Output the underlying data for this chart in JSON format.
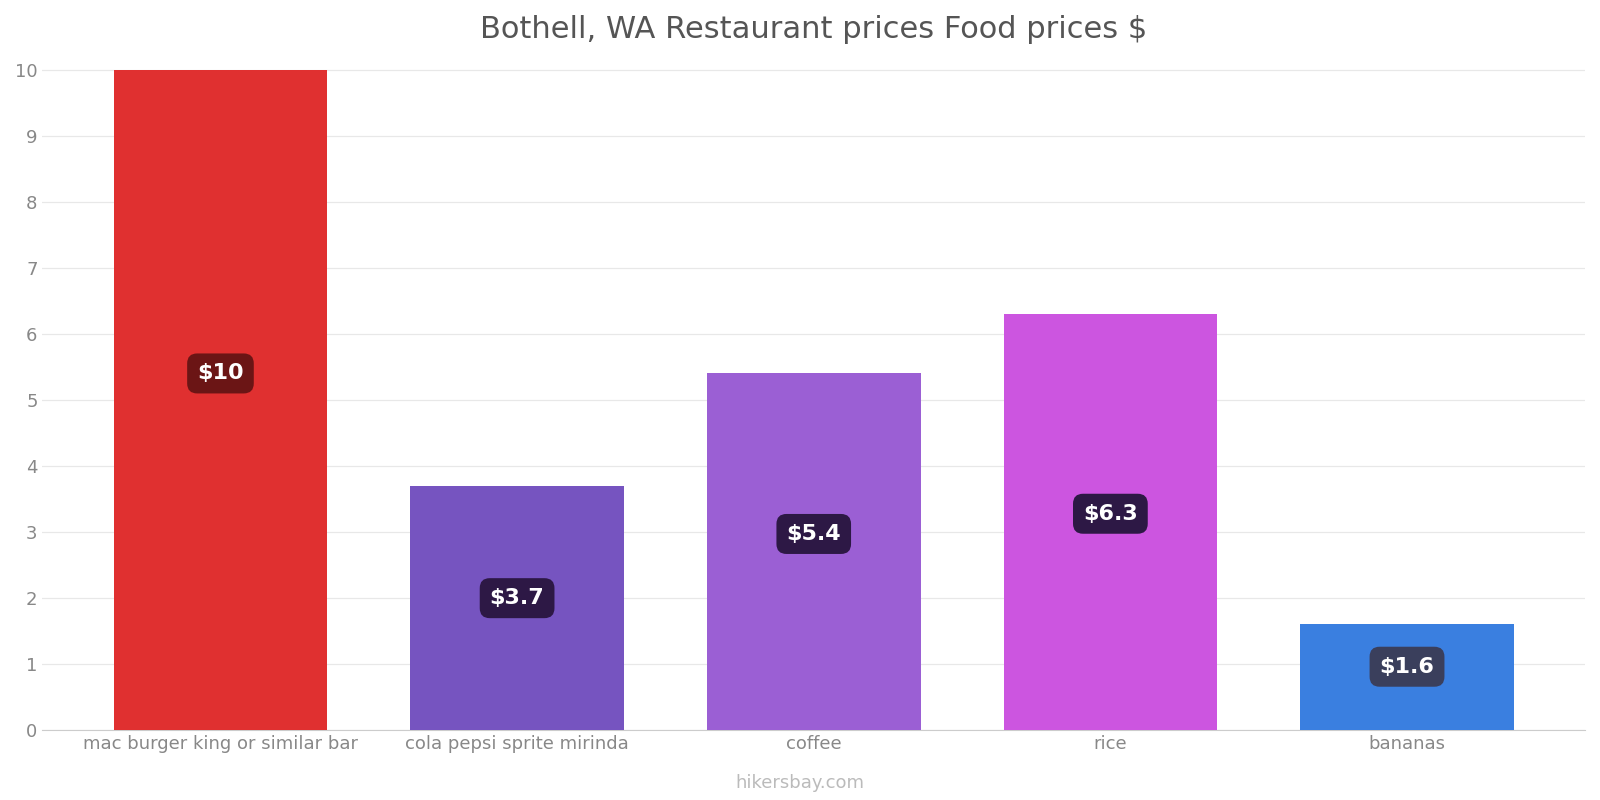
{
  "title": "Bothell, WA Restaurant prices Food prices $",
  "categories": [
    "mac burger king or similar bar",
    "cola pepsi sprite mirinda",
    "coffee",
    "rice",
    "bananas"
  ],
  "values": [
    10.0,
    3.7,
    5.4,
    6.3,
    1.6
  ],
  "bar_colors": [
    "#e03030",
    "#7654c0",
    "#9b5fd4",
    "#cc55e0",
    "#3a7fe0"
  ],
  "label_texts": [
    "$10",
    "$3.7",
    "$5.4",
    "$6.3",
    "$1.6"
  ],
  "label_bg_colors": [
    "#6b1515",
    "#2d1845",
    "#2d1845",
    "#2d1845",
    "#3a3f5c"
  ],
  "ylim": [
    0,
    10
  ],
  "yticks": [
    0,
    1,
    2,
    3,
    4,
    5,
    6,
    7,
    8,
    9,
    10
  ],
  "title_fontsize": 22,
  "tick_fontsize": 13,
  "label_fontsize": 16,
  "watermark": "hikersbay.com",
  "background_color": "#ffffff",
  "grid_color": "#e8e8e8"
}
